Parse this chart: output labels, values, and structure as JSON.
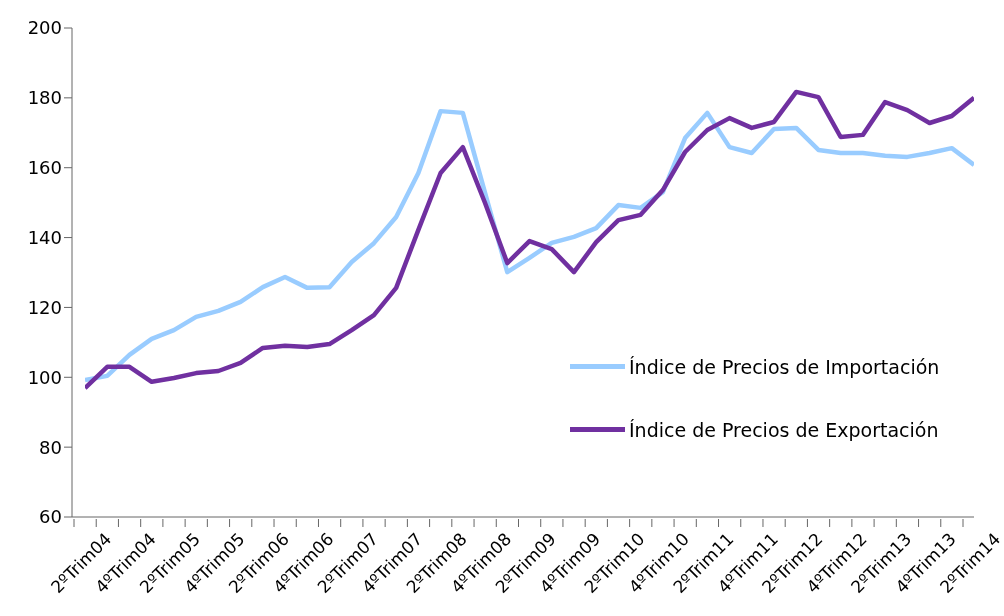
{
  "chart_data": {
    "type": "line",
    "categories": [
      "2ºTrim04",
      null,
      "4ºTrim04",
      null,
      "2ºTrim05",
      null,
      "4ºTrim05",
      null,
      "2ºTrim06",
      null,
      "4ºTrim06",
      null,
      "2ºTrim07",
      null,
      "4ºTrim07",
      null,
      "2ºTrim08",
      null,
      "4ºTrim08",
      null,
      "2ºTrim09",
      null,
      "4ºTrim09",
      null,
      "2ºTrim10",
      null,
      "4ºTrim10",
      null,
      "2ºTrim11",
      null,
      "4ºTrim11",
      null,
      "2ºTrim12",
      null,
      "4ºTrim12",
      null,
      "2ºTrim13",
      null,
      "4ºTrim13",
      null,
      "2ºTrim14"
    ],
    "series": [
      {
        "name": "Índice de Precios de Importación",
        "color": "#99ccff",
        "values": [
          99.2,
          100.4,
          106.4,
          111,
          113.5,
          117.3,
          119,
          121.6,
          125.8,
          128.7,
          125.6,
          125.8,
          133,
          138.4,
          145.9,
          158.5,
          176.2,
          175.7,
          152.8,
          130.1,
          134.2,
          138.5,
          140.2,
          142.7,
          149.3,
          148.5,
          153,
          168.5,
          175.7,
          165.9,
          164.2,
          171.1,
          171.4,
          165.1,
          164.2,
          164.2,
          163.4,
          163.1,
          164.2,
          165.6,
          160.8
        ]
      },
      {
        "name": "Índice de Precios de Exportación",
        "color": "#7030a0",
        "values": [
          96.9,
          103,
          103,
          98.7,
          99.8,
          101.2,
          101.8,
          104.1,
          108.4,
          109,
          108.7,
          109.5,
          113.5,
          117.8,
          125.6,
          142.2,
          158.5,
          165.9,
          149.9,
          132.7,
          139,
          136.7,
          130.1,
          138.7,
          145,
          146.5,
          153.6,
          164.5,
          170.8,
          174.2,
          171.4,
          173.1,
          181.7,
          180.2,
          168.8,
          169.4,
          178.8,
          176.5,
          172.8,
          174.8,
          180
        ]
      }
    ],
    "ylim": [
      60,
      200
    ],
    "yticks": [
      60,
      80,
      100,
      120,
      140,
      160,
      180,
      200
    ],
    "grid": false,
    "legend": "right",
    "marker": "none",
    "line_style": "solid"
  }
}
